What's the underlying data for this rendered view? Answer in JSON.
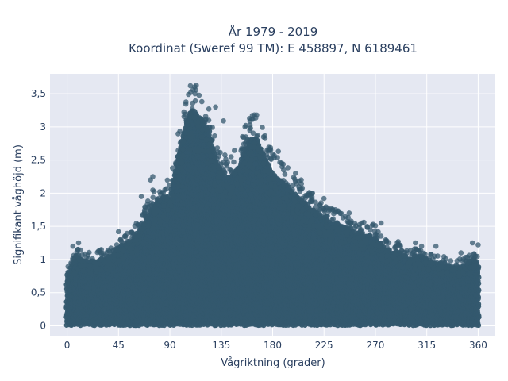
{
  "chart_data": {
    "type": "scatter",
    "title": "År 1979 - 2019",
    "subtitle": "Koordinat (Sweref 99 TM): E 458897, N 6189461",
    "xlabel": "Vågriktning (grader)",
    "ylabel": "Signifikant våghöjd (m)",
    "xlim": [
      -15,
      375
    ],
    "ylim": [
      -0.15,
      3.8
    ],
    "x_ticks": [
      0,
      45,
      90,
      135,
      180,
      225,
      270,
      315,
      360
    ],
    "x_tick_labels": [
      "0",
      "45",
      "90",
      "135",
      "180",
      "225",
      "270",
      "315",
      "360"
    ],
    "y_ticks": [
      0,
      0.5,
      1,
      1.5,
      2,
      2.5,
      3,
      3.5
    ],
    "y_tick_labels": [
      "0",
      "0,5",
      "1",
      "1,5",
      "2",
      "2,5",
      "3",
      "3,5"
    ],
    "grid": true,
    "marker_color": "#34586e",
    "plot_bg": "#e5e8f2",
    "envelope": [
      {
        "x": 0,
        "y": 0.85
      },
      {
        "x": 5,
        "y": 1.0
      },
      {
        "x": 10,
        "y": 1.12
      },
      {
        "x": 20,
        "y": 1.05
      },
      {
        "x": 30,
        "y": 1.1
      },
      {
        "x": 40,
        "y": 1.15
      },
      {
        "x": 45,
        "y": 1.3
      },
      {
        "x": 55,
        "y": 1.38
      },
      {
        "x": 65,
        "y": 1.6
      },
      {
        "x": 75,
        "y": 1.95
      },
      {
        "x": 85,
        "y": 2.15
      },
      {
        "x": 90,
        "y": 2.1
      },
      {
        "x": 95,
        "y": 2.6
      },
      {
        "x": 100,
        "y": 3.0
      },
      {
        "x": 105,
        "y": 3.4
      },
      {
        "x": 110,
        "y": 3.55
      },
      {
        "x": 115,
        "y": 3.45
      },
      {
        "x": 120,
        "y": 3.3
      },
      {
        "x": 125,
        "y": 3.2
      },
      {
        "x": 130,
        "y": 2.7
      },
      {
        "x": 140,
        "y": 2.4
      },
      {
        "x": 150,
        "y": 2.6
      },
      {
        "x": 160,
        "y": 3.05
      },
      {
        "x": 165,
        "y": 3.1
      },
      {
        "x": 170,
        "y": 2.9
      },
      {
        "x": 180,
        "y": 2.5
      },
      {
        "x": 190,
        "y": 2.35
      },
      {
        "x": 200,
        "y": 2.15
      },
      {
        "x": 210,
        "y": 1.95
      },
      {
        "x": 220,
        "y": 1.85
      },
      {
        "x": 230,
        "y": 1.7
      },
      {
        "x": 240,
        "y": 1.65
      },
      {
        "x": 250,
        "y": 1.55
      },
      {
        "x": 260,
        "y": 1.5
      },
      {
        "x": 270,
        "y": 1.45
      },
      {
        "x": 280,
        "y": 1.25
      },
      {
        "x": 290,
        "y": 1.2
      },
      {
        "x": 300,
        "y": 1.1
      },
      {
        "x": 310,
        "y": 1.15
      },
      {
        "x": 320,
        "y": 1.05
      },
      {
        "x": 330,
        "y": 1.0
      },
      {
        "x": 340,
        "y": 0.95
      },
      {
        "x": 350,
        "y": 1.0
      },
      {
        "x": 355,
        "y": 1.1
      },
      {
        "x": 360,
        "y": 1.0
      }
    ],
    "outliers": [
      {
        "x": 108,
        "y": 3.62
      },
      {
        "x": 112,
        "y": 3.5
      },
      {
        "x": 118,
        "y": 3.38
      },
      {
        "x": 130,
        "y": 3.3
      },
      {
        "x": 137,
        "y": 3.09
      },
      {
        "x": 164,
        "y": 3.18
      },
      {
        "x": 160,
        "y": 2.95
      },
      {
        "x": 172,
        "y": 2.85
      },
      {
        "x": 185,
        "y": 2.63
      },
      {
        "x": 200,
        "y": 2.3
      },
      {
        "x": 205,
        "y": 2.2
      },
      {
        "x": 215,
        "y": 2.0
      },
      {
        "x": 225,
        "y": 1.92
      },
      {
        "x": 235,
        "y": 1.75
      },
      {
        "x": 247,
        "y": 1.7
      },
      {
        "x": 258,
        "y": 1.55
      },
      {
        "x": 275,
        "y": 1.55
      },
      {
        "x": 290,
        "y": 1.27
      },
      {
        "x": 305,
        "y": 1.25
      },
      {
        "x": 323,
        "y": 1.2
      },
      {
        "x": 345,
        "y": 1.1
      },
      {
        "x": 355,
        "y": 1.25
      },
      {
        "x": 360,
        "y": 1.22
      },
      {
        "x": 75,
        "y": 2.25
      },
      {
        "x": 73,
        "y": 2.2
      },
      {
        "x": 65,
        "y": 1.95
      },
      {
        "x": 45,
        "y": 1.42
      },
      {
        "x": 10,
        "y": 1.25
      },
      {
        "x": 5,
        "y": 1.2
      },
      {
        "x": 30,
        "y": 1.15
      },
      {
        "x": 55,
        "y": 1.28
      },
      {
        "x": 85,
        "y": 1.95
      }
    ]
  }
}
